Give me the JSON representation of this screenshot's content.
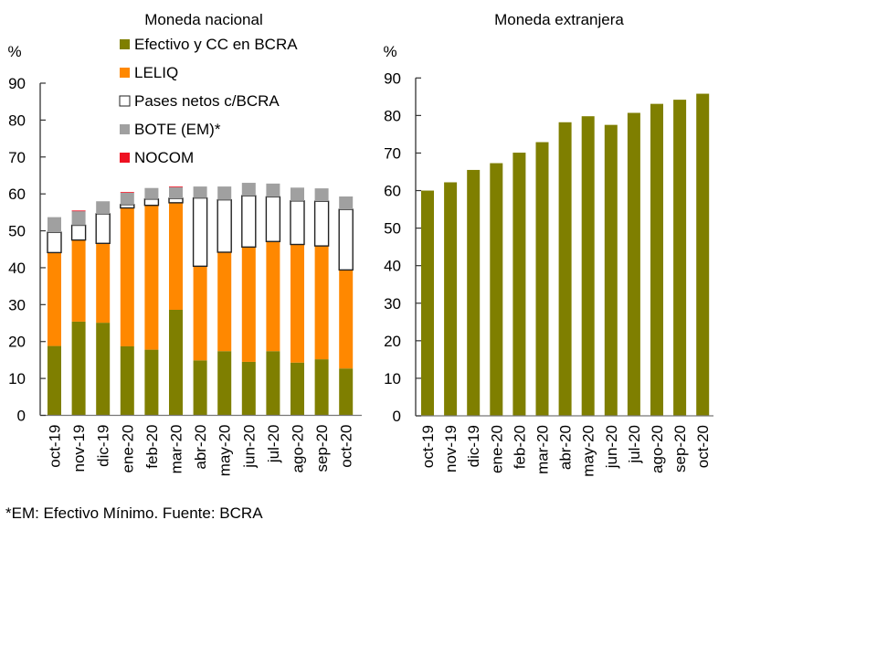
{
  "footnote": "*EM: Efectivo Mínimo. Fuente: BCRA",
  "colors": {
    "efectivo": "#7f7f00",
    "leliq": "#ff8800",
    "pases": "#ffffff",
    "bote": "#a0a0a0",
    "nocom": "#ee1122"
  },
  "chart_data": [
    {
      "type": "bar",
      "stacked": true,
      "title": "Moneda nacional",
      "ylabel": "%",
      "xlabel": "",
      "ylim": [
        0,
        90
      ],
      "yticks": [
        "0",
        "10",
        "20",
        "30",
        "40",
        "50",
        "60",
        "70",
        "80",
        "90"
      ],
      "grid": false,
      "legend_position": "top",
      "categories": [
        "oct-19",
        "nov-19",
        "dic-19",
        "ene-20",
        "feb-20",
        "mar-20",
        "abr-20",
        "may-20",
        "jun-20",
        "jul-20",
        "ago-20",
        "sep-20",
        "oct-20"
      ],
      "series": [
        {
          "name": "Efectivo y CC en BCRA",
          "color": "#7f7f00",
          "values": [
            18.8,
            25.4,
            25.1,
            18.7,
            17.8,
            28.6,
            14.9,
            17.4,
            14.5,
            17.4,
            14.3,
            15.2,
            12.7
          ]
        },
        {
          "name": "LELIQ",
          "color": "#ff8800",
          "values": [
            25.3,
            22.1,
            21.5,
            37.5,
            39.1,
            29.0,
            25.5,
            26.8,
            31.1,
            29.7,
            32.0,
            30.7,
            26.7
          ]
        },
        {
          "name": "Pases netos c/BCRA",
          "color": "#ffffff",
          "values": [
            5.5,
            4.0,
            8.0,
            0.9,
            1.7,
            1.2,
            18.5,
            14.2,
            13.9,
            12.1,
            11.8,
            12.1,
            16.4
          ]
        },
        {
          "name": "BOTE (EM)*",
          "color": "#a0a0a0",
          "values": [
            4.1,
            3.9,
            3.4,
            3.2,
            3.0,
            3.0,
            3.1,
            3.6,
            3.5,
            3.6,
            3.6,
            3.5,
            3.5
          ]
        },
        {
          "name": "NOCOM",
          "color": "#ee1122",
          "values": [
            0.0,
            0.1,
            0.0,
            0.2,
            0.0,
            0.2,
            0.0,
            0.0,
            0.0,
            0.0,
            0.0,
            0.0,
            0.0
          ]
        }
      ]
    },
    {
      "type": "bar",
      "title": "Moneda extranjera",
      "ylabel": "%",
      "xlabel": "",
      "ylim": [
        0,
        90
      ],
      "yticks": [
        "0",
        "10",
        "20",
        "30",
        "40",
        "50",
        "60",
        "70",
        "80",
        "90"
      ],
      "grid": false,
      "categories": [
        "oct-19",
        "nov-19",
        "dic-19",
        "ene-20",
        "feb-20",
        "mar-20",
        "abr-20",
        "may-20",
        "jun-20",
        "jul-20",
        "ago-20",
        "sep-20",
        "oct-20"
      ],
      "series": [
        {
          "name": "Moneda extranjera",
          "color": "#7f7f00",
          "values": [
            60.0,
            62.2,
            65.5,
            67.3,
            70.1,
            72.9,
            78.2,
            79.8,
            77.5,
            80.7,
            83.1,
            84.2,
            85.8
          ]
        }
      ]
    }
  ]
}
